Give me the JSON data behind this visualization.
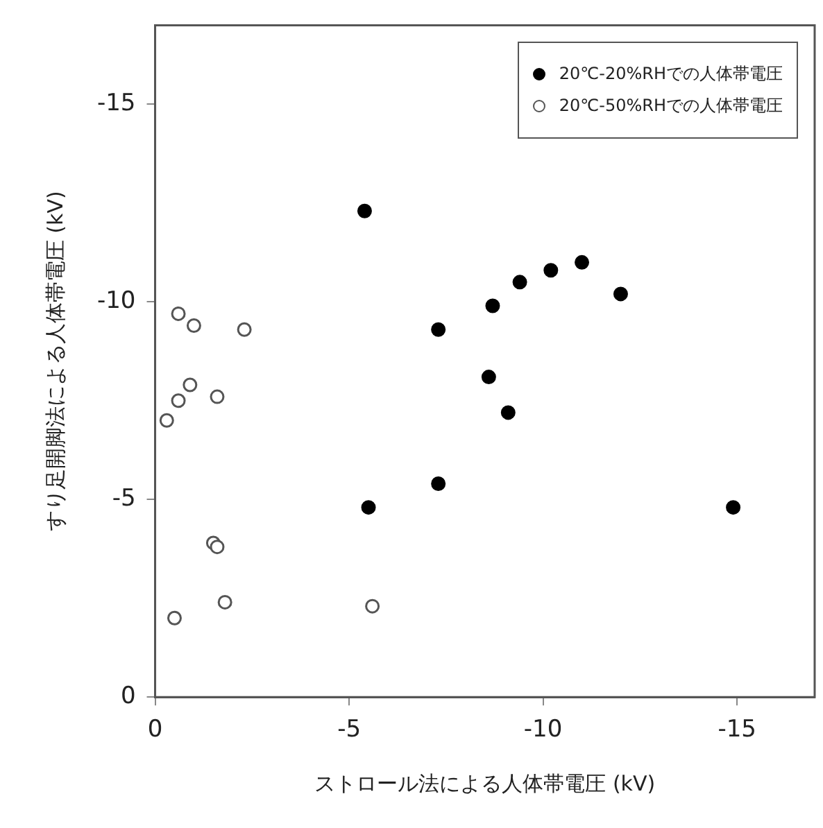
{
  "chart_data": {
    "type": "scatter",
    "xlabel": "ストロール法による人体帯電圧 (kV)",
    "ylabel": "すり足開脚法による人体帯電圧 (kV)",
    "xlim": [
      0,
      -17
    ],
    "ylim": [
      0,
      -17
    ],
    "xticks": [
      0,
      -5,
      -10,
      -15
    ],
    "yticks": [
      0,
      -5,
      -10,
      -15
    ],
    "grid": false,
    "legend": "top right",
    "marker": "circle",
    "series": [
      {
        "name": "20℃-20%RHでの人体帯電圧",
        "color": "#000000",
        "x": [
          -5.4,
          -7.3,
          -8.7,
          -9.4,
          -10.2,
          -11.0,
          -12.0,
          -8.6,
          -9.1,
          -7.3,
          -5.5,
          -14.9
        ],
        "values": [
          -12.3,
          -9.3,
          -9.9,
          -10.5,
          -10.8,
          -11.0,
          -10.2,
          -8.1,
          -7.2,
          -5.4,
          -4.8,
          -4.8
        ]
      },
      {
        "name": "20℃-50%RHでの人体帯電圧",
        "color": "#555555",
        "x": [
          -0.6,
          -1.0,
          -2.3,
          -0.9,
          -0.6,
          -1.6,
          -0.3,
          -1.5,
          -1.6,
          -1.8,
          -0.5,
          -5.6
        ],
        "values": [
          -9.7,
          -9.4,
          -9.3,
          -7.9,
          -7.5,
          -7.6,
          -7.0,
          -3.9,
          -3.8,
          -2.4,
          -2.0,
          -2.3
        ]
      }
    ]
  }
}
